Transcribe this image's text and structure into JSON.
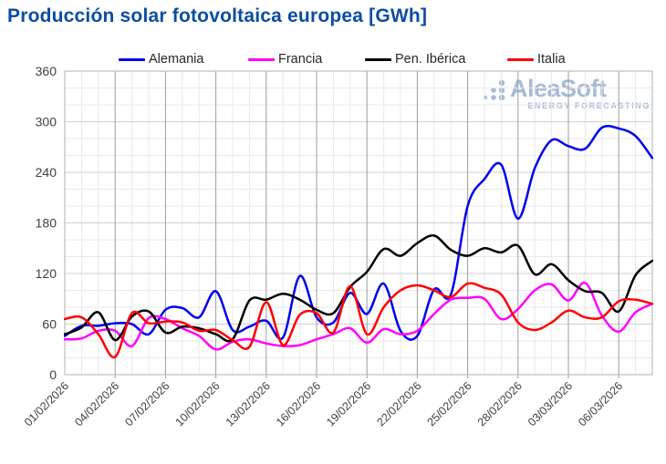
{
  "title": "Producción solar fotovoltaica europea [GWh]",
  "watermark": {
    "brand": "AleaSoft",
    "tagline": "ENERGY FORECASTING",
    "color": "#a6bbd7"
  },
  "colors": {
    "title": "#0c4da2",
    "axis_text": "#3f3f3f",
    "plot_border": "#bfbfbf",
    "grid_minor": "#e9e9e9",
    "grid_major_h": "#cfcfcf",
    "grid_major_v": "#9c9c9c"
  },
  "chart_data": {
    "type": "line",
    "title": "Producción solar fotovoltaica europea [GWh]",
    "xlabel": "",
    "ylabel": "",
    "ylim": [
      0,
      360
    ],
    "y_major_step": 60,
    "y_minor_step": 20,
    "x_tick_every": 3,
    "grid": true,
    "legend_position": "top",
    "x": [
      "01/02/2026",
      "02/02/2026",
      "03/02/2026",
      "04/02/2026",
      "05/02/2026",
      "06/02/2026",
      "07/02/2026",
      "08/02/2026",
      "09/02/2026",
      "10/02/2026",
      "11/02/2026",
      "12/02/2026",
      "13/02/2026",
      "14/02/2026",
      "15/02/2026",
      "16/02/2026",
      "17/02/2026",
      "18/02/2026",
      "19/02/2026",
      "20/02/2026",
      "21/02/2026",
      "22/02/2026",
      "23/02/2026",
      "24/02/2026",
      "25/02/2026",
      "26/02/2026",
      "27/02/2026",
      "28/02/2026",
      "01/03/2026",
      "02/03/2026",
      "03/03/2026",
      "04/03/2026",
      "05/03/2026",
      "06/03/2026",
      "07/03/2026",
      "08/03/2026"
    ],
    "series": [
      {
        "name": "Alemania",
        "color": "#0000ee",
        "values": [
          46,
          58,
          58,
          61,
          60,
          48,
          77,
          79,
          68,
          99,
          53,
          57,
          64,
          44,
          117,
          68,
          62,
          97,
          72,
          108,
          52,
          46,
          101,
          95,
          200,
          232,
          249,
          185,
          245,
          278,
          271,
          268,
          293,
          292,
          283,
          257
        ]
      },
      {
        "name": "Francia",
        "color": "#ff00ff",
        "values": [
          42,
          43,
          52,
          52,
          34,
          67,
          66,
          55,
          46,
          30,
          39,
          42,
          37,
          34,
          35,
          42,
          48,
          55,
          38,
          54,
          48,
          52,
          72,
          89,
          91,
          90,
          66,
          78,
          100,
          107,
          88,
          109,
          70,
          51,
          74,
          84
        ]
      },
      {
        "name": "Pen. Ibérica",
        "color": "#000000",
        "values": [
          48,
          56,
          74,
          41,
          69,
          75,
          50,
          57,
          55,
          48,
          42,
          88,
          89,
          96,
          89,
          77,
          73,
          104,
          122,
          149,
          141,
          156,
          165,
          148,
          141,
          150,
          145,
          153,
          119,
          131,
          112,
          99,
          97,
          75,
          118,
          135
        ]
      },
      {
        "name": "Italia",
        "color": "#ff0000",
        "values": [
          66,
          68,
          48,
          21,
          73,
          61,
          63,
          62,
          52,
          53,
          41,
          33,
          86,
          35,
          71,
          73,
          50,
          105,
          48,
          80,
          100,
          106,
          100,
          92,
          108,
          103,
          95,
          62,
          53,
          62,
          76,
          68,
          68,
          87,
          89,
          84
        ]
      }
    ]
  }
}
